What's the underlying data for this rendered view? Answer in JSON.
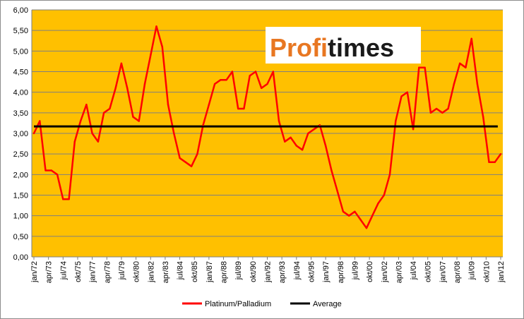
{
  "logo": {
    "part1": "Profi",
    "part2": "times",
    "color1": "#e87722",
    "color2": "#1a1a1a"
  },
  "colors": {
    "plot_background": "#ffc000",
    "series_color": "#ff0000",
    "average_color": "#000000",
    "gridline": "#7f7f7f"
  },
  "chart_data": {
    "type": "line",
    "title": "",
    "xlabel": "",
    "ylabel": "",
    "ylim": [
      0,
      6
    ],
    "yticks": [
      "0,00",
      "0,50",
      "1,00",
      "1,50",
      "2,00",
      "2,50",
      "3,00",
      "3,50",
      "4,00",
      "4,50",
      "5,00",
      "5,50",
      "6,00"
    ],
    "xticks": [
      "jan/72",
      "apr/73",
      "jul/74",
      "okt/75",
      "jan/77",
      "apr/78",
      "jul/79",
      "okt/80",
      "jan/82",
      "apr/83",
      "jul/84",
      "okt/85",
      "jan/87",
      "apr/88",
      "jul/89",
      "okt/90",
      "jan/92",
      "apr/93",
      "jul/94",
      "okt/95",
      "jan/97",
      "apr/98",
      "jul/99",
      "okt/00",
      "jan/02",
      "apr/03",
      "jul/04",
      "okt/05",
      "jan/07",
      "apr/08",
      "jul/09",
      "okt/10",
      "jan/12"
    ],
    "grid": true,
    "legend_position": "bottom",
    "series": [
      {
        "name": "Platinum/Palladium",
        "color": "#ff0000",
        "x": [
          "jan/72",
          "jul/72",
          "jan/73",
          "jul/73",
          "jan/74",
          "jul/74",
          "jan/75",
          "jul/75",
          "jan/76",
          "jul/76",
          "jan/77",
          "jul/77",
          "jan/78",
          "jul/78",
          "jan/79",
          "jul/79",
          "jan/80",
          "jul/80",
          "jan/81",
          "jul/81",
          "jan/82",
          "jul/82",
          "jan/83",
          "jul/83",
          "jan/84",
          "jul/84",
          "jan/85",
          "jul/85",
          "jan/86",
          "jul/86",
          "jan/87",
          "jul/87",
          "jan/88",
          "jul/88",
          "jan/89",
          "jul/89",
          "jan/90",
          "jul/90",
          "jan/91",
          "jul/91",
          "jan/92",
          "jul/92",
          "jan/93",
          "jul/93",
          "jan/94",
          "jul/94",
          "jan/95",
          "jul/95",
          "jan/96",
          "jul/96",
          "jan/97",
          "jul/97",
          "jan/98",
          "jul/98",
          "jan/99",
          "jul/99",
          "jan/00",
          "jul/00",
          "jan/01",
          "jul/01",
          "jan/02",
          "jul/02",
          "jan/03",
          "jul/03",
          "jan/04",
          "jul/04",
          "jan/05",
          "jul/05",
          "jan/06",
          "jul/06",
          "jan/07",
          "jul/07",
          "jan/08",
          "jul/08",
          "jan/09",
          "jul/09",
          "jan/10",
          "jul/10",
          "jan/11",
          "jul/11",
          "jan/12"
        ],
        "values": [
          3.0,
          3.3,
          2.1,
          2.1,
          2.0,
          1.4,
          1.4,
          2.8,
          3.3,
          3.7,
          3.0,
          2.8,
          3.5,
          3.6,
          4.1,
          4.7,
          4.1,
          3.4,
          3.3,
          4.2,
          4.9,
          5.6,
          5.1,
          3.7,
          3.0,
          2.4,
          2.3,
          2.2,
          2.5,
          3.2,
          3.7,
          4.2,
          4.3,
          4.3,
          4.5,
          3.6,
          3.6,
          4.4,
          4.5,
          4.1,
          4.2,
          4.5,
          3.3,
          2.8,
          2.9,
          2.7,
          2.6,
          3.0,
          3.1,
          3.2,
          2.7,
          2.1,
          1.6,
          1.1,
          1.0,
          1.1,
          0.9,
          0.7,
          1.0,
          1.3,
          1.5,
          2.0,
          3.3,
          3.9,
          4.0,
          3.1,
          4.6,
          4.6,
          3.5,
          3.6,
          3.5,
          3.6,
          4.2,
          4.7,
          4.6,
          5.3,
          4.2,
          3.4,
          2.3,
          2.3,
          2.5
        ]
      },
      {
        "name": "Average",
        "color": "#000000",
        "value": 3.17
      }
    ]
  }
}
